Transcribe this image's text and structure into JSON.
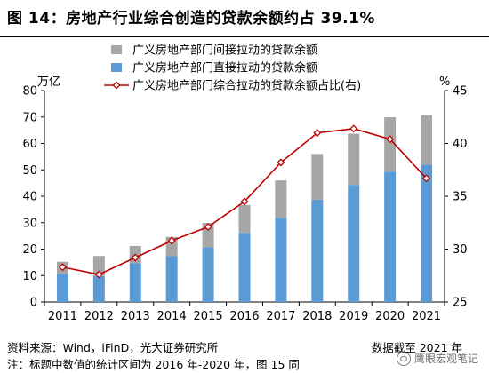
{
  "figure": {
    "title": "图 14：房地产行业综合创造的贷款余额约占 39.1%",
    "source": "资料来源：Wind，iFinD，光大证券研究所",
    "date_note": "数据截至 2021 年",
    "note": "注：标题中数值的统计区间为 2016 年-2020 年，图 15 同",
    "watermark": "鹰眼宏观笔记"
  },
  "chart_data": {
    "type": "bar",
    "stacked": true,
    "categories": [
      "2011",
      "2012",
      "2013",
      "2014",
      "2015",
      "2016",
      "2017",
      "2018",
      "2019",
      "2020",
      "2021"
    ],
    "y_left_unit": "万亿",
    "y_right_unit": "%",
    "y_left_lim": [
      0,
      80
    ],
    "y_left_ticks": [
      0,
      10,
      20,
      30,
      40,
      50,
      60,
      70,
      80
    ],
    "y_right_lim": [
      25,
      45
    ],
    "y_right_ticks": [
      25,
      30,
      35,
      40,
      45
    ],
    "legend_position": "top-right",
    "series": [
      {
        "name": "广义房地产部门间接拉动的贷款余额",
        "type": "bar",
        "axis": "left",
        "color": "#a6a6a6",
        "values": [
          4.6,
          7.6,
          6.6,
          7.3,
          9.2,
          10.6,
          14.2,
          17.3,
          19.4,
          20.6,
          18.8
        ]
      },
      {
        "name": "广义房地产部门直接拉动的贷款余额",
        "type": "bar",
        "axis": "left",
        "color": "#5b9bd5",
        "values": [
          10.6,
          9.8,
          14.6,
          17.3,
          20.7,
          26.1,
          31.8,
          38.7,
          44.3,
          49.3,
          51.9
        ]
      },
      {
        "name": "广义房地产部门综合拉动的贷款余额占比(右)",
        "type": "line",
        "axis": "right",
        "color": "#c00000",
        "values": [
          28.3,
          27.6,
          29.2,
          30.8,
          32.1,
          34.5,
          38.2,
          41.0,
          41.4,
          40.4,
          36.7
        ]
      }
    ]
  }
}
